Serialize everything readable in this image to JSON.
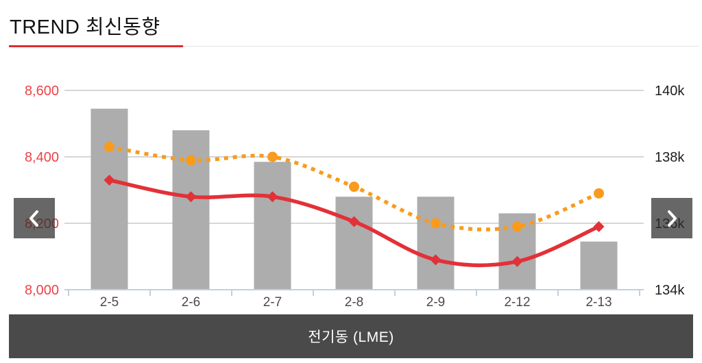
{
  "header": {
    "title": "TREND 최신동향"
  },
  "nav": {
    "prev_icon": "chevron-left",
    "next_icon": "chevron-right"
  },
  "footer": {
    "series_title": "전기동 (LME)"
  },
  "colors": {
    "accent_red": "#e12b33",
    "bar_gray": "#adadad",
    "line_red": "#e23137",
    "line_orange": "#f99b1d",
    "left_axis_text": "#ee4247",
    "right_axis_text": "#1d1d1d",
    "x_axis_text": "#4a4a4a",
    "axis_line_blue": "#c1cfe3",
    "grid_gray": "#c8c8c8",
    "panel_dark": "#4a4a4a"
  },
  "chart_data": {
    "type": "combo",
    "title": "TREND 최신동향",
    "categories": [
      "2-5",
      "2-6",
      "2-7",
      "2-8",
      "2-9",
      "2-12",
      "2-13"
    ],
    "series": [
      {
        "name": "bar-series",
        "type": "bar",
        "axis": "left",
        "values": [
          8545,
          8480,
          8385,
          8280,
          8280,
          8230,
          8145
        ]
      },
      {
        "name": "solid-line-series",
        "type": "line",
        "line_style": "solid",
        "marker": "diamond",
        "axis": "left",
        "values": [
          8330,
          8280,
          8280,
          8205,
          8090,
          8085,
          8190
        ]
      },
      {
        "name": "dotted-line-series",
        "type": "line",
        "line_style": "dotted",
        "marker": "circle",
        "axis": "right",
        "values": [
          138.3,
          137.9,
          138.0,
          137.1,
          136.0,
          135.9,
          136.9
        ]
      }
    ],
    "left_axis": {
      "min": 8000,
      "max": 8600,
      "tick_labels": [
        "8,600",
        "8,400",
        "8,200",
        "8,000"
      ]
    },
    "right_axis": {
      "min": 134,
      "max": 140,
      "tick_labels": [
        "140k",
        "138k",
        "136k",
        "134k"
      ]
    },
    "grid": true,
    "legend": "none"
  }
}
